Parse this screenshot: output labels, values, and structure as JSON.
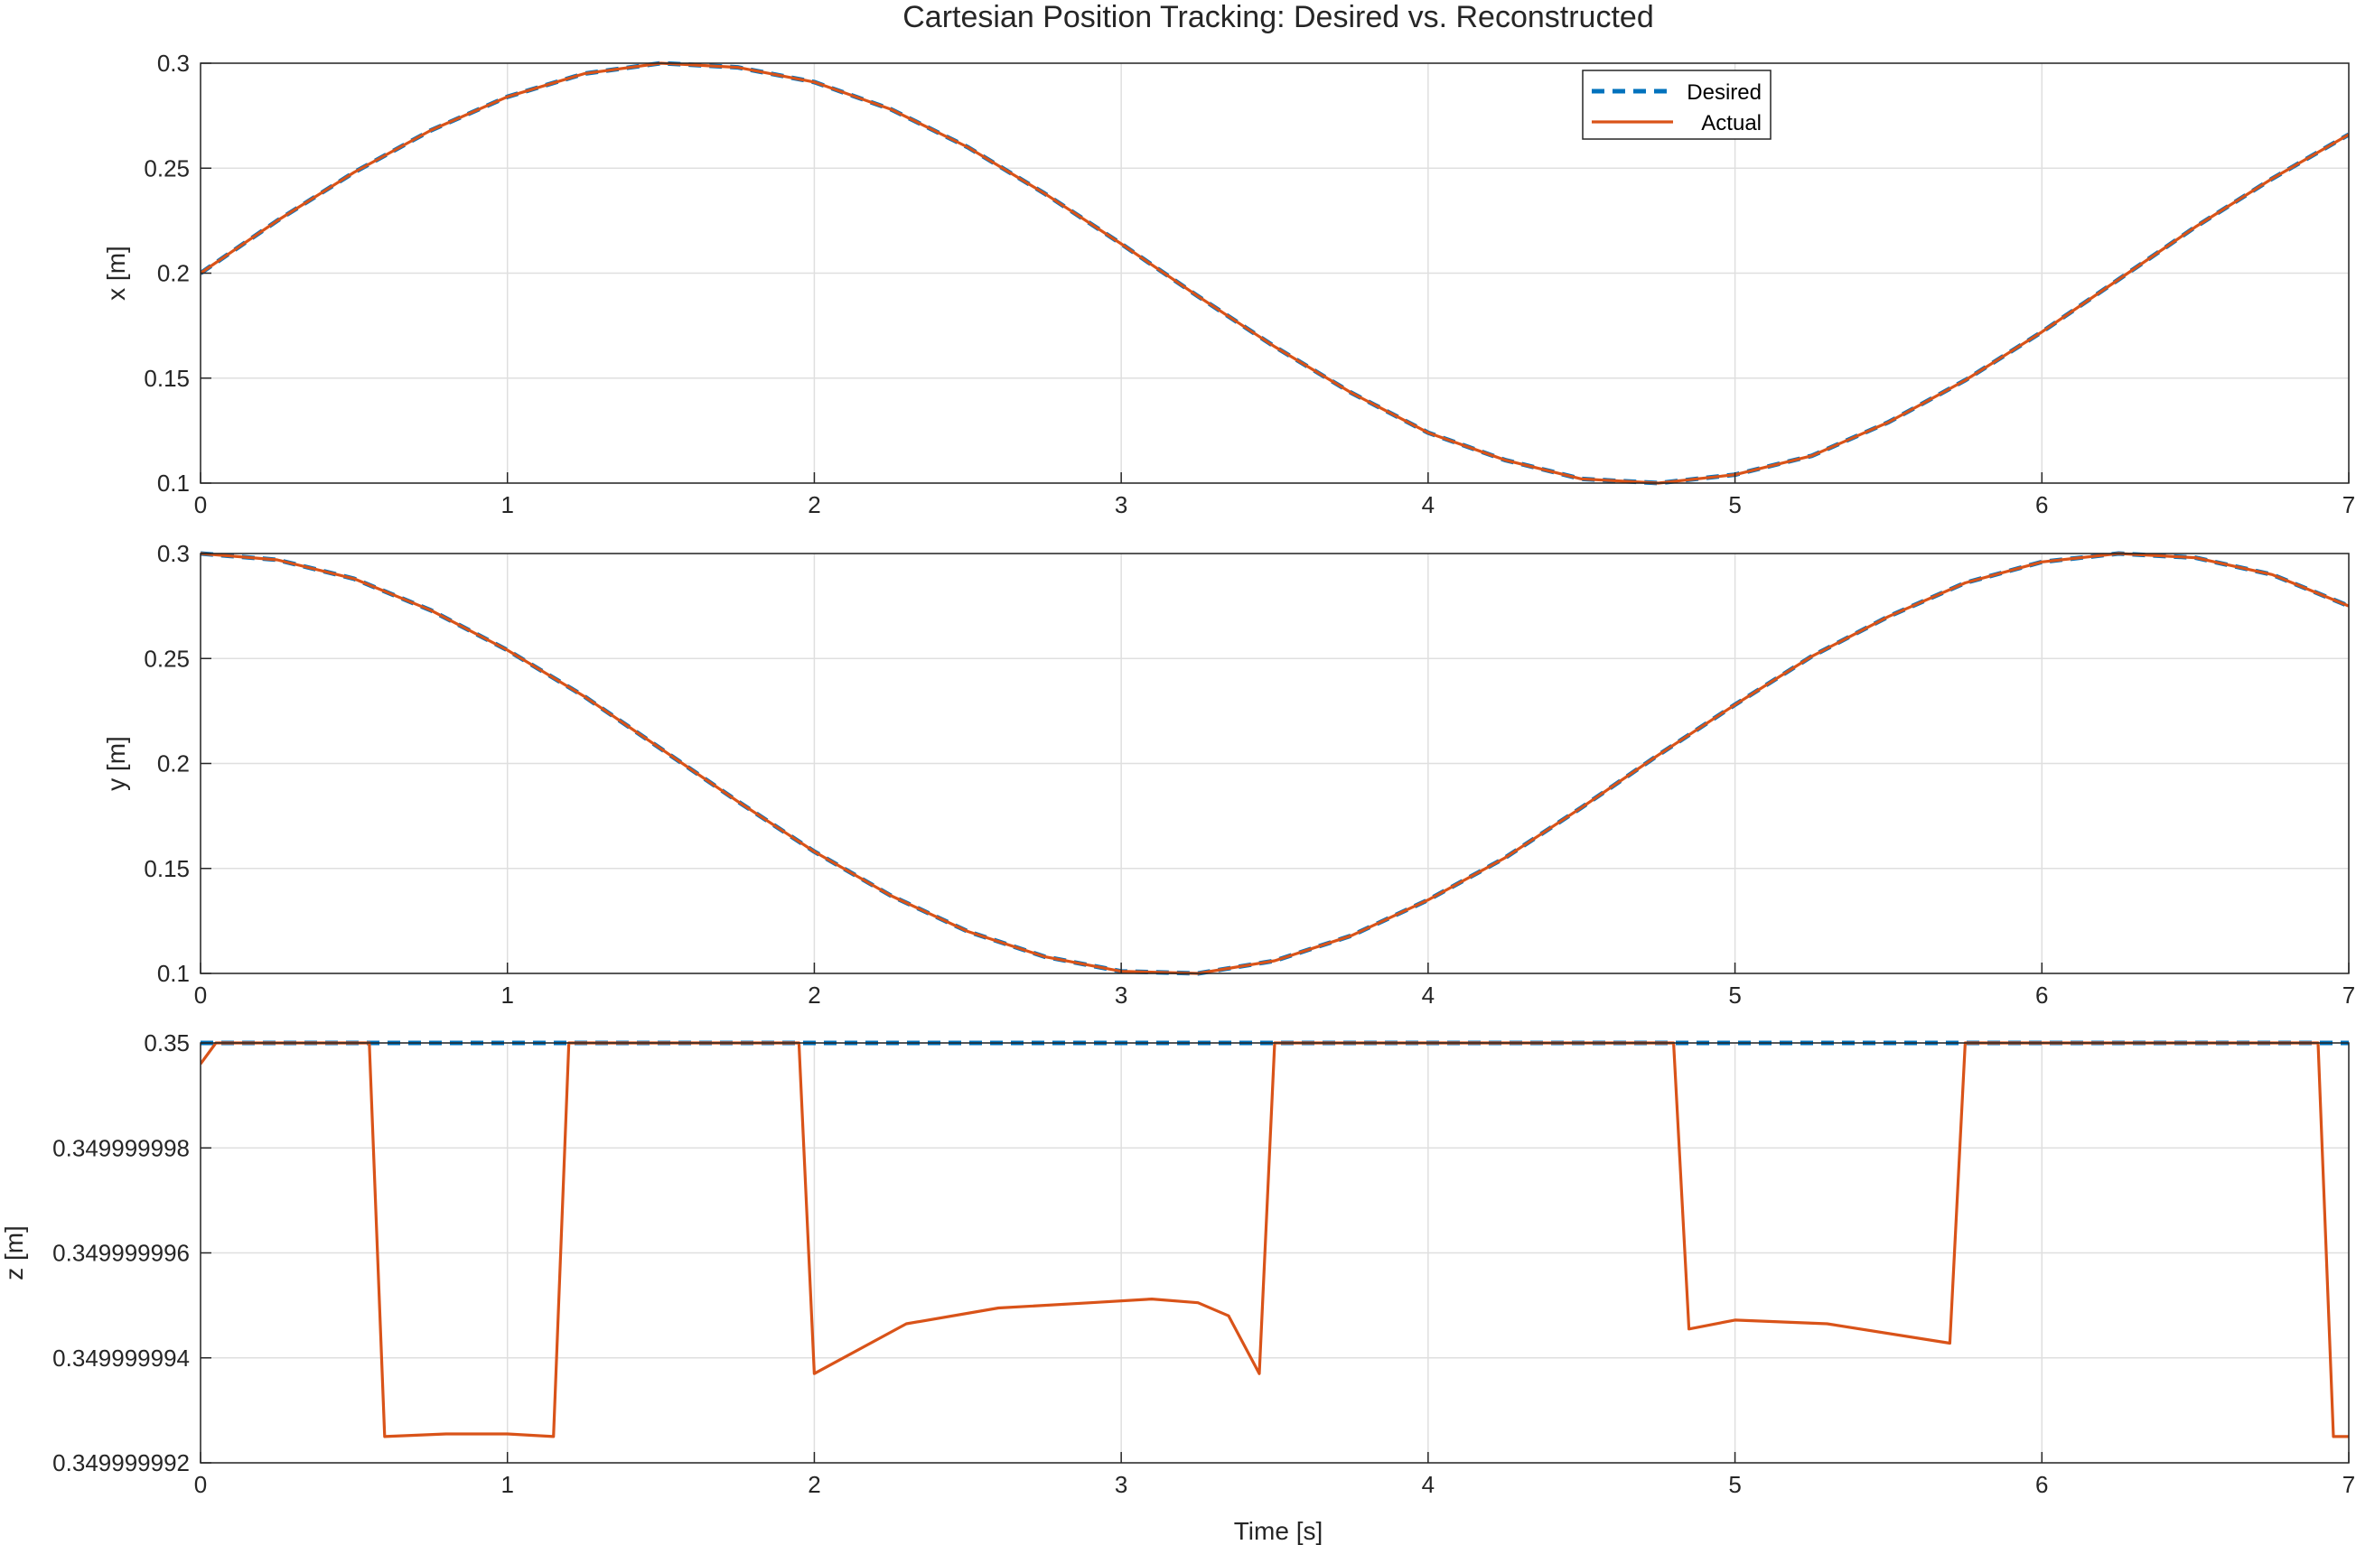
{
  "figure": {
    "title": "Cartesian Position Tracking: Desired vs. Reconstructed",
    "xlabel": "Time [s]",
    "colors": {
      "desired": "#0072BD",
      "actual": "#D95319",
      "grid": "#DFDFDF",
      "axis": "#262626"
    }
  },
  "legend": {
    "desired_label": "Desired",
    "actual_label": "Actual",
    "location": "top-right-inside-first-panel"
  },
  "chart_data": [
    {
      "type": "line",
      "title": "Cartesian Position Tracking: Desired vs. Reconstructed",
      "xlabel": "",
      "ylabel": "x [m]",
      "xlim": [
        0,
        7
      ],
      "ylim": [
        0.1,
        0.3
      ],
      "grid": true,
      "xticks": [
        "0",
        "1",
        "2",
        "3",
        "4",
        "5",
        "6",
        "7"
      ],
      "yticks": [
        "0.1",
        "0.15",
        "0.2",
        "0.25",
        "0.3"
      ],
      "legend": "top-right",
      "series": [
        {
          "name": "Desired",
          "style": "dashed",
          "x": [
            0,
            0.25,
            0.5,
            0.75,
            1,
            1.25,
            1.5,
            1.75,
            2,
            2.25,
            2.5,
            2.75,
            3,
            3.25,
            3.5,
            3.75,
            4,
            4.25,
            4.5,
            4.75,
            5,
            5.25,
            5.5,
            5.75,
            6,
            6.25,
            6.5,
            6.75,
            7
          ],
          "y": [
            0.2,
            0.225,
            0.248,
            0.268,
            0.284,
            0.295,
            0.3,
            0.298,
            0.291,
            0.278,
            0.26,
            0.238,
            0.214,
            0.189,
            0.165,
            0.143,
            0.124,
            0.111,
            0.102,
            0.1,
            0.104,
            0.113,
            0.129,
            0.149,
            0.172,
            0.197,
            0.222,
            0.245,
            0.266
          ]
        },
        {
          "name": "Actual",
          "style": "solid",
          "x": [
            0,
            0.25,
            0.5,
            0.75,
            1,
            1.25,
            1.5,
            1.75,
            2,
            2.25,
            2.5,
            2.75,
            3,
            3.25,
            3.5,
            3.75,
            4,
            4.25,
            4.5,
            4.75,
            5,
            5.25,
            5.5,
            5.75,
            6,
            6.25,
            6.5,
            6.75,
            7
          ],
          "y": [
            0.2,
            0.225,
            0.248,
            0.268,
            0.284,
            0.295,
            0.3,
            0.298,
            0.291,
            0.278,
            0.26,
            0.238,
            0.214,
            0.189,
            0.165,
            0.143,
            0.124,
            0.111,
            0.102,
            0.1,
            0.104,
            0.113,
            0.129,
            0.149,
            0.172,
            0.197,
            0.222,
            0.245,
            0.266
          ]
        }
      ]
    },
    {
      "type": "line",
      "title": "",
      "xlabel": "",
      "ylabel": "y [m]",
      "xlim": [
        0,
        7
      ],
      "ylim": [
        0.1,
        0.3
      ],
      "grid": true,
      "xticks": [
        "0",
        "1",
        "2",
        "3",
        "4",
        "5",
        "6",
        "7"
      ],
      "yticks": [
        "0.1",
        "0.15",
        "0.2",
        "0.25",
        "0.3"
      ],
      "series": [
        {
          "name": "Desired",
          "style": "dashed",
          "x": [
            0,
            0.25,
            0.5,
            0.75,
            1,
            1.25,
            1.5,
            1.75,
            2,
            2.25,
            2.5,
            2.75,
            3,
            3.25,
            3.5,
            3.75,
            4,
            4.25,
            4.5,
            4.75,
            5,
            5.25,
            5.5,
            5.75,
            6,
            6.25,
            6.5,
            6.75,
            7
          ],
          "y": [
            0.3,
            0.297,
            0.288,
            0.273,
            0.254,
            0.232,
            0.207,
            0.182,
            0.158,
            0.137,
            0.12,
            0.108,
            0.101,
            0.1,
            0.106,
            0.118,
            0.135,
            0.155,
            0.179,
            0.204,
            0.228,
            0.251,
            0.27,
            0.286,
            0.296,
            0.3,
            0.298,
            0.29,
            0.275
          ]
        },
        {
          "name": "Actual",
          "style": "solid",
          "x": [
            0,
            0.25,
            0.5,
            0.75,
            1,
            1.25,
            1.5,
            1.75,
            2,
            2.25,
            2.5,
            2.75,
            3,
            3.25,
            3.5,
            3.75,
            4,
            4.25,
            4.5,
            4.75,
            5,
            5.25,
            5.5,
            5.75,
            6,
            6.25,
            6.5,
            6.75,
            7
          ],
          "y": [
            0.3,
            0.297,
            0.288,
            0.273,
            0.254,
            0.232,
            0.207,
            0.182,
            0.158,
            0.137,
            0.12,
            0.108,
            0.101,
            0.1,
            0.106,
            0.118,
            0.135,
            0.155,
            0.179,
            0.204,
            0.228,
            0.251,
            0.27,
            0.286,
            0.296,
            0.3,
            0.298,
            0.29,
            0.275
          ]
        }
      ]
    },
    {
      "type": "line",
      "title": "",
      "xlabel": "Time [s]",
      "ylabel": "z [m]",
      "xlim": [
        0,
        7
      ],
      "ylim": [
        0.349999992,
        0.35
      ],
      "grid": true,
      "xticks": [
        "0",
        "1",
        "2",
        "3",
        "4",
        "5",
        "6",
        "7"
      ],
      "yticks": [
        "0.349999992",
        "0.349999994",
        "0.349999996",
        "0.349999998",
        "0.35"
      ],
      "series": [
        {
          "name": "Desired",
          "style": "dashed",
          "x": [
            0,
            7
          ],
          "y": [
            0.35,
            0.35
          ]
        },
        {
          "name": "Actual",
          "style": "solid",
          "x": [
            0,
            0.05,
            0.55,
            0.6,
            0.8,
            1.0,
            1.15,
            1.2,
            1.95,
            2.0,
            2.3,
            2.6,
            2.9,
            3.1,
            3.25,
            3.35,
            3.45,
            3.5,
            4.8,
            4.85,
            5.0,
            5.3,
            5.7,
            5.75,
            6.9,
            6.95,
            7.0
          ],
          "y": [
            0.3499999996,
            0.35,
            0.35,
            0.3499999925,
            0.34999999255,
            0.34999999255,
            0.3499999925,
            0.35,
            0.35,
            0.3499999937,
            0.34999999465,
            0.34999999495,
            0.34999999505,
            0.34999999512,
            0.34999999505,
            0.3499999948,
            0.3499999937,
            0.35,
            0.35,
            0.34999999455,
            0.34999999472,
            0.34999999465,
            0.34999999428,
            0.35,
            0.35,
            0.3499999925,
            0.3499999925
          ]
        }
      ]
    }
  ]
}
